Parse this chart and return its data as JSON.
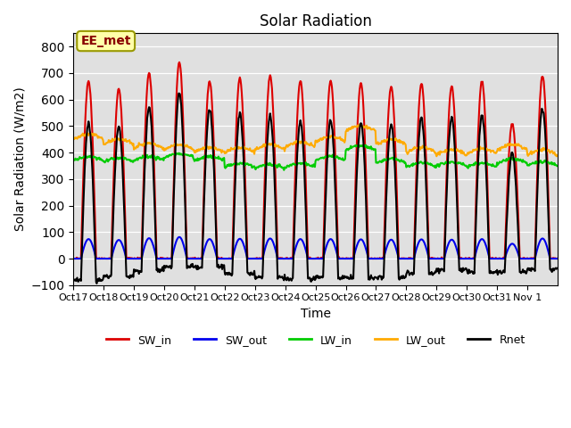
{
  "title": "Solar Radiation",
  "xlabel": "Time",
  "ylabel": "Solar Radiation (W/m2)",
  "ylim": [
    -100,
    850
  ],
  "yticks": [
    -100,
    0,
    100,
    200,
    300,
    400,
    500,
    600,
    700,
    800
  ],
  "xtick_labels": [
    "Oct 17",
    "Oct 18",
    "Oct 19",
    "Oct 20",
    "Oct 21",
    "Oct 22",
    "Oct 23",
    "Oct 24",
    "Oct 25",
    "Oct 26",
    "Oct 27",
    "Oct 28",
    "Oct 29",
    "Oct 30",
    "Oct 31",
    "Nov 1"
  ],
  "colors": {
    "SW_in": "#dd0000",
    "SW_out": "#0000ee",
    "LW_in": "#00cc00",
    "LW_out": "#ffaa00",
    "Rnet": "#000000"
  },
  "bg_color": "#e0e0e0",
  "annotation_text": "EE_met",
  "annotation_bg": "#ffffaa",
  "annotation_border": "#999900",
  "n_days": 16,
  "lw": 1.5,
  "sw_peaks": [
    670,
    640,
    700,
    740,
    670,
    680,
    690,
    670,
    670,
    660,
    650,
    660,
    650,
    670,
    510,
    690
  ],
  "lw_in_base": [
    370,
    365,
    370,
    380,
    370,
    345,
    340,
    345,
    370,
    410,
    360,
    345,
    350,
    345,
    360,
    350
  ],
  "lw_out_base": [
    450,
    430,
    415,
    410,
    400,
    400,
    410,
    420,
    440,
    480,
    430,
    400,
    390,
    395,
    410,
    390
  ]
}
